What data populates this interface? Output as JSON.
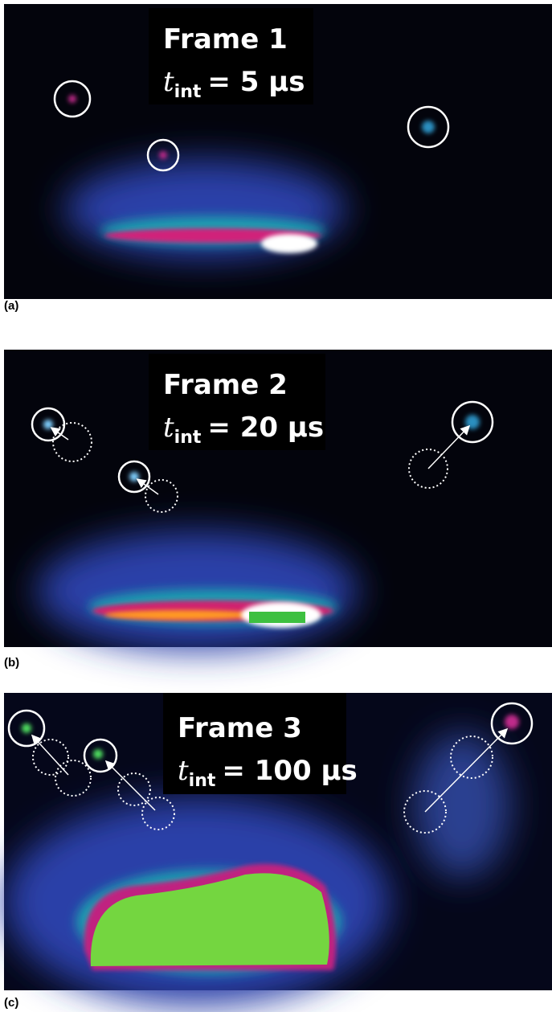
{
  "panels": [
    {
      "label": "(a)",
      "frame": "Frame 1",
      "symbol": "t",
      "subscript": "int",
      "exposure": "= 5 μs"
    },
    {
      "label": "(b)",
      "frame": "Frame 2",
      "symbol": "t",
      "subscript": "int",
      "exposure": "= 20 μs"
    },
    {
      "label": "(c)",
      "frame": "Frame 3",
      "symbol": "t",
      "subscript": "int",
      "exposure": "= 100 μs"
    }
  ]
}
